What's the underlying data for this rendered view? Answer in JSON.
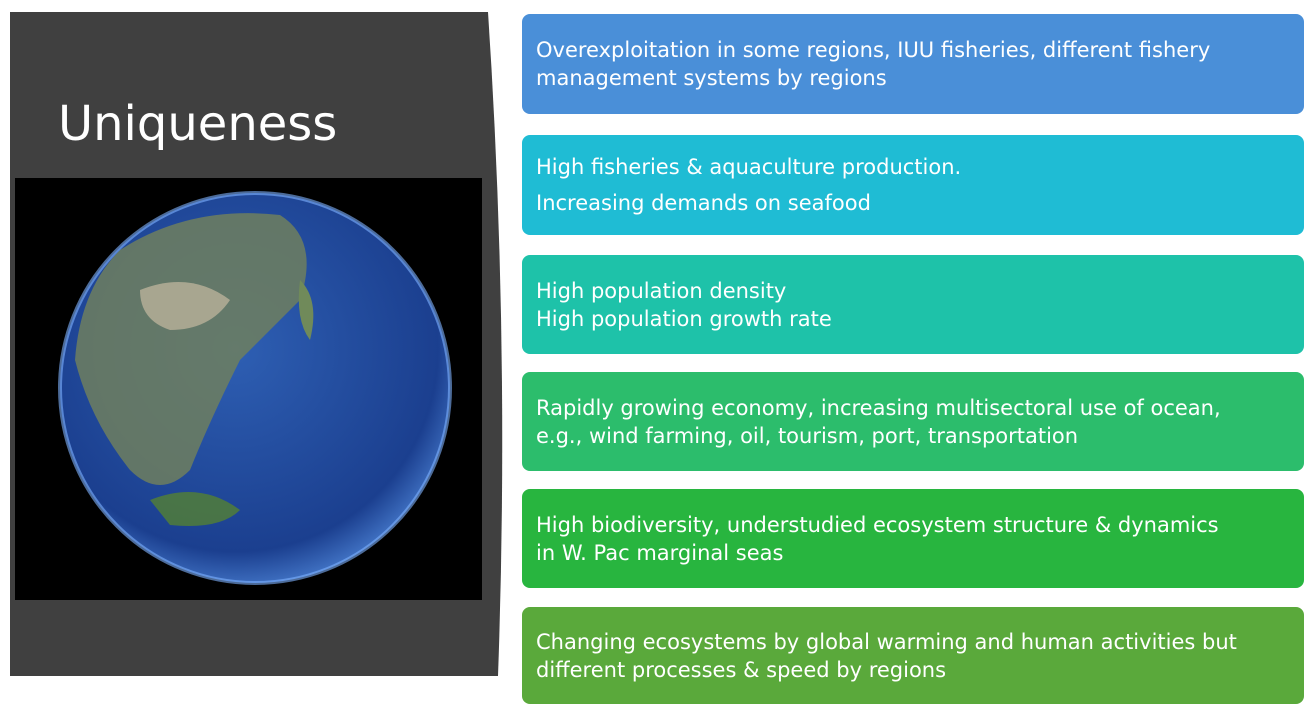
{
  "header": {
    "title": "Uniqueness"
  },
  "boxes": [
    {
      "lines": [
        "Overexploitation in some regions, IUU fisheries, different fishery",
        "management systems by regions"
      ]
    },
    {
      "lines": [
        "High fisheries & aquaculture production.",
        "Increasing demands on seafood"
      ]
    },
    {
      "lines": [
        "High population density",
        "High population growth rate"
      ]
    },
    {
      "lines": [
        "Rapidly growing economy, increasing multisectoral use of ocean,",
        "e.g., wind farming, oil, tourism, port, transportation"
      ]
    },
    {
      "lines": [
        "High biodiversity, understudied ecosystem structure & dynamics",
        "in W. Pac marginal seas"
      ]
    },
    {
      "lines": [
        "Changing ecosystems by global warming and human activities but",
        "different processes & speed by regions"
      ]
    }
  ]
}
